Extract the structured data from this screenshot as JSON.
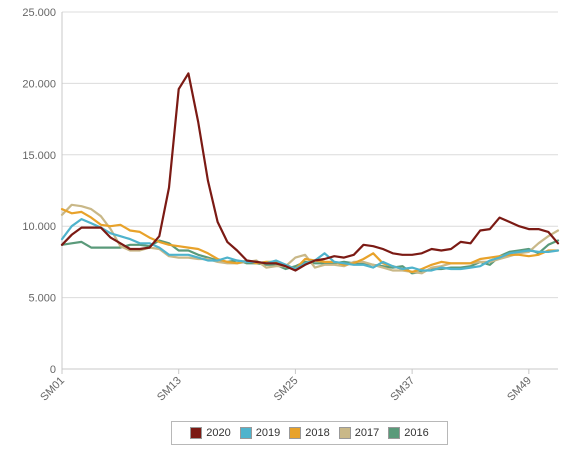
{
  "chart_data": {
    "type": "line",
    "title": "",
    "xlabel": "",
    "ylabel": "",
    "ylim": [
      0,
      25000
    ],
    "y_ticks": [
      0,
      5000,
      10000,
      15000,
      20000,
      25000
    ],
    "y_tick_labels": [
      "0",
      "5.000",
      "10.000",
      "15.000",
      "20.000",
      "25.000"
    ],
    "x_range": [
      1,
      52
    ],
    "x_ticks": [
      1,
      13,
      25,
      37,
      49
    ],
    "x_tick_labels": [
      "SM01",
      "SM13",
      "SM25",
      "SM37",
      "SM49"
    ],
    "grid": "horizontal",
    "legend_position": "bottom",
    "draw_order": [
      "2016",
      "2017",
      "2018",
      "2019",
      "2020"
    ],
    "series": [
      {
        "name": "2020",
        "color": "#7b1a14",
        "values": [
          8700,
          9400,
          9900,
          9900,
          9900,
          9200,
          8800,
          8400,
          8400,
          8500,
          9300,
          12700,
          19600,
          20700,
          17300,
          13200,
          10300,
          8900,
          8300,
          7600,
          7500,
          7400,
          7400,
          7200,
          6900,
          7300,
          7600,
          7700,
          7900,
          7800,
          8000,
          8700,
          8600,
          8400,
          8100,
          8000,
          8000,
          8100,
          8400,
          8300,
          8400,
          8900,
          8800,
          9700,
          9800,
          10600,
          10300,
          10000,
          9800,
          9800,
          9600,
          8800
        ]
      },
      {
        "name": "2019",
        "color": "#4fb3cc",
        "values": [
          9100,
          10000,
          10500,
          10200,
          9900,
          9500,
          9300,
          9100,
          8800,
          8800,
          8500,
          8000,
          8000,
          8000,
          7800,
          7600,
          7600,
          7800,
          7600,
          7500,
          7500,
          7400,
          7600,
          7300,
          7000,
          7400,
          7600,
          8100,
          7500,
          7400,
          7300,
          7300,
          7100,
          7500,
          7200,
          7000,
          7100,
          6900,
          6900,
          7100,
          7000,
          7000,
          7100,
          7200,
          7600,
          7800,
          8100,
          8200,
          8300,
          8200,
          8200,
          8300
        ]
      },
      {
        "name": "2018",
        "color": "#e8a22a",
        "values": [
          11200,
          10900,
          11000,
          10600,
          10100,
          10000,
          10100,
          9700,
          9600,
          9200,
          8900,
          8700,
          8600,
          8500,
          8400,
          8100,
          7700,
          7500,
          7400,
          7600,
          7400,
          7500,
          7500,
          7300,
          7000,
          7700,
          7600,
          7500,
          7500,
          7300,
          7400,
          7700,
          8100,
          7400,
          7200,
          7000,
          6800,
          7000,
          7300,
          7500,
          7400,
          7400,
          7400,
          7700,
          7800,
          7900,
          8000,
          8000,
          7900,
          8000,
          8300,
          8300
        ]
      },
      {
        "name": "2017",
        "color": "#c9b888",
        "values": [
          10800,
          11500,
          11400,
          11200,
          10700,
          9800,
          8600,
          8300,
          8300,
          8500,
          8400,
          7900,
          7800,
          7800,
          7700,
          7700,
          7500,
          7400,
          7400,
          7500,
          7600,
          7100,
          7200,
          7200,
          7800,
          8000,
          7100,
          7300,
          7300,
          7200,
          7500,
          7500,
          7300,
          7100,
          6900,
          6900,
          6800,
          6700,
          7100,
          7200,
          7400,
          7400,
          7400,
          7500,
          7500,
          7700,
          7900,
          8100,
          8200,
          8800,
          9300,
          9700
        ]
      },
      {
        "name": "2016",
        "color": "#5a9a7a",
        "values": [
          8700,
          8800,
          8900,
          8500,
          8500,
          8500,
          8500,
          8700,
          8700,
          8600,
          9000,
          8800,
          8300,
          8300,
          8000,
          7800,
          7600,
          7500,
          7600,
          7400,
          7400,
          7300,
          7300,
          7000,
          7200,
          7500,
          7400,
          7400,
          7400,
          7500,
          7400,
          7400,
          7300,
          7200,
          7100,
          7200,
          6700,
          6800,
          7000,
          7000,
          7100,
          7100,
          7200,
          7500,
          7300,
          7900,
          8200,
          8300,
          8400,
          8100,
          8700,
          9000
        ]
      }
    ]
  }
}
